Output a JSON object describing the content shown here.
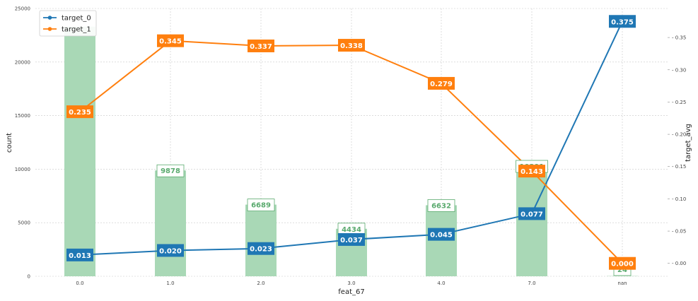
{
  "chart_data": {
    "type": "bar",
    "categories": [
      "0.0",
      "1.0",
      "2.0",
      "3.0",
      "4.0",
      "7.0",
      "nan"
    ],
    "xlabel": "feat_67",
    "ylabel": "count",
    "ylabel_right": "target_avg",
    "ylim": [
      0,
      25000
    ],
    "ylim_right": [
      -0.02,
      0.395
    ],
    "yticks": [
      "0",
      "5000",
      "10000",
      "15000",
      "20000",
      "25000"
    ],
    "yticks_right": [
      "0.00",
      "0.05",
      "0.10",
      "0.15",
      "0.20",
      "0.25",
      "0.30",
      "0.35"
    ],
    "grid": true,
    "legend_position": "top-left",
    "bars": {
      "values": [
        23300,
        9878,
        6689,
        4434,
        6632,
        10291,
        24
      ],
      "labels": [
        "",
        "9878",
        "6689",
        "4434",
        "6632",
        "10291",
        "24"
      ],
      "color": "#a9d8b6",
      "label_color": "#5aaa6e"
    },
    "series": [
      {
        "name": "target_0",
        "color": "#1f77b4",
        "values": [
          0.013,
          0.02,
          0.023,
          0.037,
          0.045,
          0.077,
          0.375
        ],
        "labels": [
          "0.013",
          "0.020",
          "0.023",
          "0.037",
          "0.045",
          "0.077",
          "0.375"
        ]
      },
      {
        "name": "target_1",
        "color": "#ff7f0e",
        "values": [
          0.235,
          0.345,
          0.337,
          0.338,
          0.279,
          0.143,
          0.0
        ],
        "labels": [
          "0.235",
          "0.345",
          "0.337",
          "0.338",
          "0.279",
          "0.143",
          "0.000"
        ]
      }
    ]
  }
}
